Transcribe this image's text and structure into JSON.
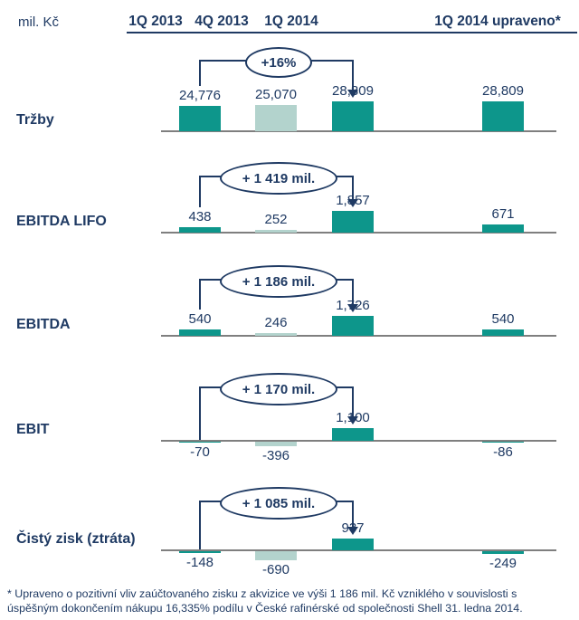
{
  "header": {
    "unit_label": "mil. Kč",
    "columns": [
      "1Q 2013",
      "4Q 2013",
      "1Q 2014",
      "1Q 2014 upraveno*"
    ]
  },
  "chart_data": {
    "type": "bar",
    "unit": "mil. Kč",
    "categories": [
      "1Q 2013",
      "4Q 2013",
      "1Q 2014",
      "1Q 2014 upraveno*"
    ],
    "series": [
      {
        "name": "Tržby",
        "values": [
          24776,
          25070,
          28809,
          28809
        ],
        "display": [
          "24,776",
          "25,070",
          "28,809",
          "28,809"
        ],
        "change_badge": "+16%"
      },
      {
        "name": "EBITDA LIFO",
        "values": [
          438,
          252,
          1857,
          671
        ],
        "display": [
          "438",
          "252",
          "1,857",
          "671"
        ],
        "change_badge": "+ 1 419 mil."
      },
      {
        "name": "EBITDA",
        "values": [
          540,
          246,
          1726,
          540
        ],
        "display": [
          "540",
          "246",
          "1,726",
          "540"
        ],
        "change_badge": "+ 1 186 mil."
      },
      {
        "name": "EBIT",
        "values": [
          -70,
          -396,
          1100,
          -86
        ],
        "display": [
          "-70",
          "-396",
          "1,100",
          "-86"
        ],
        "change_badge": "+ 1 170 mil."
      },
      {
        "name": "Čistý zisk (ztráta)",
        "values": [
          -148,
          -690,
          937,
          -249
        ],
        "display": [
          "-148",
          "-690",
          "937",
          "-249"
        ],
        "change_badge": "+ 1 085 mil."
      }
    ],
    "layout_hints": {
      "grid": false,
      "value_labels": true,
      "muted_category": "4Q 2013",
      "change_arrow": "from 1Q 2013 to 1Q 2014"
    }
  },
  "colors": {
    "bar_dark_teal": "#0d968b",
    "bar_light_teal": "#b3d3cd",
    "navy_text": "#1f3a63",
    "baseline_gray": "#7f7f7f",
    "badge_bg": "#ffffff"
  },
  "footnote": {
    "lines": [
      "* Upraveno o pozitivní vliv zaúčtovaného zisku z akvizice ve výši 1 186 mil. Kč vzniklého v souvislosti  s",
      "úspěšným dokončením nákupu 16,335% podílu v České rafinérské od společnosti Shell 31. ledna 2014."
    ]
  }
}
